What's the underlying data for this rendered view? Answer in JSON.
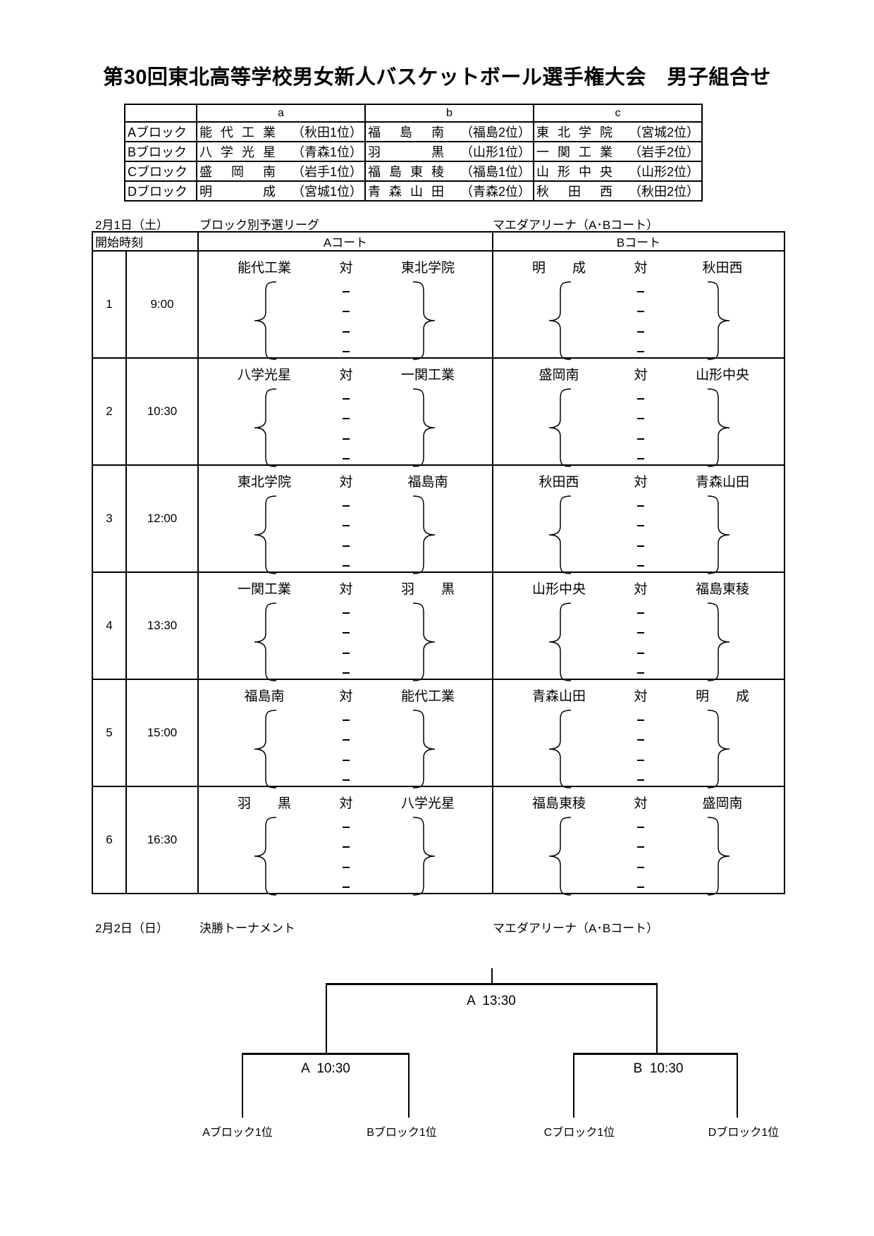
{
  "title": "第30回東北高等学校男女新人バスケットボール選手権大会　男子組合せ",
  "blocks": {
    "columns": [
      "",
      "a",
      "b",
      "c"
    ],
    "rows": [
      {
        "label": "Aブロック",
        "teams": [
          {
            "name": "能代工業",
            "rank": "（秋田1位）"
          },
          {
            "name": "福島南",
            "rank": "（福島2位）"
          },
          {
            "name": "東北学院",
            "rank": "（宮城2位）"
          }
        ]
      },
      {
        "label": "Bブロック",
        "teams": [
          {
            "name": "八学光星",
            "rank": "（青森1位）"
          },
          {
            "name": "羽黒",
            "rank": "（山形1位）"
          },
          {
            "name": "一関工業",
            "rank": "（岩手2位）"
          }
        ]
      },
      {
        "label": "Cブロック",
        "teams": [
          {
            "name": "盛岡南",
            "rank": "（岩手1位）"
          },
          {
            "name": "福島東稜",
            "rank": "（福島1位）"
          },
          {
            "name": "山形中央",
            "rank": "（山形2位）"
          }
        ]
      },
      {
        "label": "Dブロック",
        "teams": [
          {
            "name": "明成",
            "rank": "（宮城1位）"
          },
          {
            "name": "青森山田",
            "rank": "（青森2位）"
          },
          {
            "name": "秋田西",
            "rank": "（秋田2位）"
          }
        ]
      }
    ]
  },
  "day1": {
    "date": "2月1日（土）",
    "event": "ブロック別予選リーグ",
    "venue": "マエダアリーナ（A･Bコート）",
    "header": {
      "start_time": "開始時刻",
      "court_a": "Aコート",
      "court_b": "Bコート"
    },
    "versus": "対",
    "slots": [
      {
        "no": "1",
        "time": "9:00",
        "a": {
          "home": "能代工業",
          "away": "東北学院"
        },
        "b": {
          "home": "明　　成",
          "away": "秋田西"
        }
      },
      {
        "no": "2",
        "time": "10:30",
        "a": {
          "home": "八学光星",
          "away": "一関工業"
        },
        "b": {
          "home": "盛岡南",
          "away": "山形中央"
        }
      },
      {
        "no": "3",
        "time": "12:00",
        "a": {
          "home": "東北学院",
          "away": "福島南"
        },
        "b": {
          "home": "秋田西",
          "away": "青森山田"
        }
      },
      {
        "no": "4",
        "time": "13:30",
        "a": {
          "home": "一関工業",
          "away": "羽　　黒"
        },
        "b": {
          "home": "山形中央",
          "away": "福島東稜"
        }
      },
      {
        "no": "5",
        "time": "15:00",
        "a": {
          "home": "福島南",
          "away": "能代工業"
        },
        "b": {
          "home": "青森山田",
          "away": "明　　成"
        }
      },
      {
        "no": "6",
        "time": "16:30",
        "a": {
          "home": "羽　　黒",
          "away": "八学光星"
        },
        "b": {
          "home": "福島東稜",
          "away": "盛岡南"
        }
      }
    ]
  },
  "day2": {
    "date": "2月2日（日）",
    "event": "決勝トーナメント",
    "venue": "マエダアリーナ（A･Bコート）",
    "final": "A  13:30",
    "semis": [
      "A  10:30",
      "B  10:30"
    ],
    "entrants": [
      "Aブロック1位",
      "Bブロック1位",
      "Cブロック1位",
      "Dブロック1位"
    ]
  }
}
